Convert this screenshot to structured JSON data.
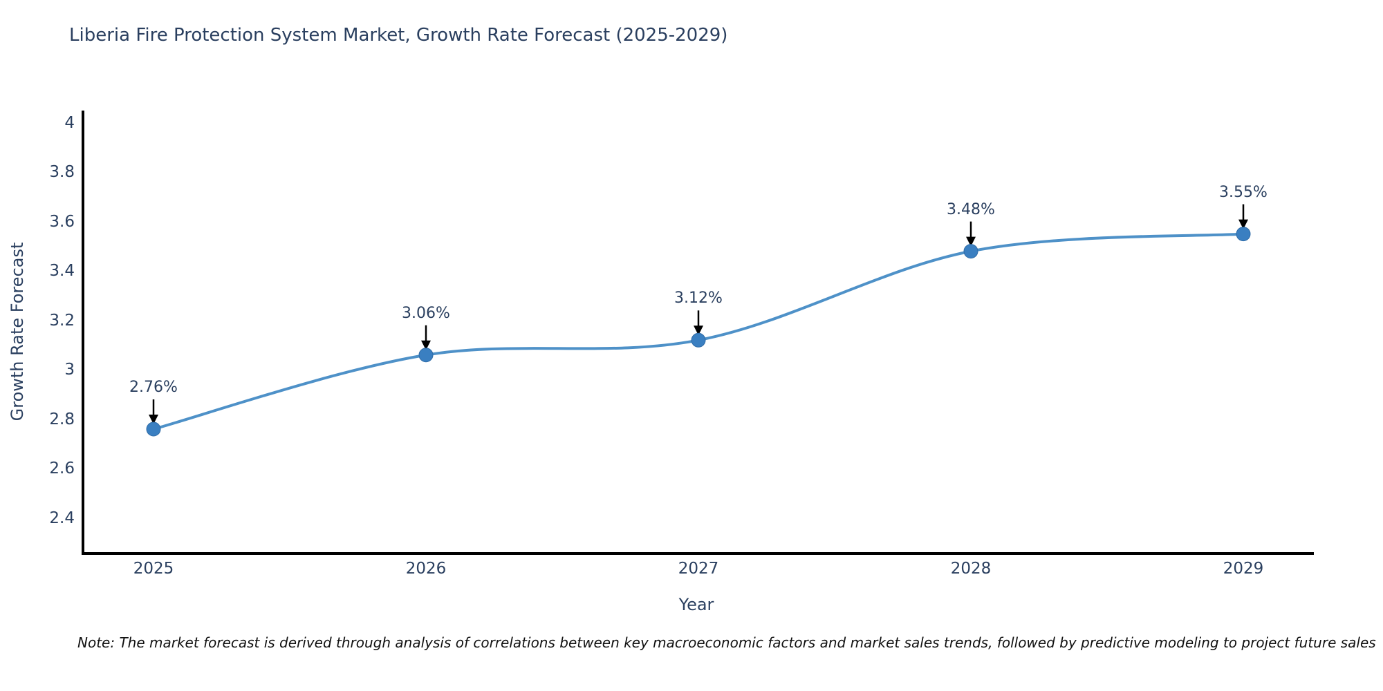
{
  "title": "Liberia Fire Protection System Market, Growth Rate Forecast (2025-2029)",
  "note": "Note: The market forecast is derived through analysis of correlations between key macroeconomic factors and market sales trends, followed by predictive modeling to project future sales",
  "chart_data": {
    "type": "line",
    "title": "Liberia Fire Protection System Market, Growth Rate Forecast (2025-2029)",
    "xlabel": "Year",
    "ylabel": "Growth Rate Forecast",
    "x": [
      "2025",
      "2026",
      "2027",
      "2028",
      "2029"
    ],
    "series": [
      {
        "name": "Growth Rate Forecast",
        "values": [
          2.76,
          3.06,
          3.12,
          3.48,
          3.55
        ]
      }
    ],
    "point_labels": [
      "2.76%",
      "3.06%",
      "3.12%",
      "3.48%",
      "3.55%"
    ],
    "ytick_labels": [
      "4",
      "3.8",
      "3.6",
      "3.4",
      "3.2",
      "3",
      "2.8",
      "2.6",
      "2.4"
    ],
    "yticks": [
      4,
      3.8,
      3.6,
      3.4,
      3.2,
      3,
      2.8,
      2.6,
      2.4
    ],
    "ylim": [
      2.2565,
      4.0495
    ],
    "grid": false,
    "line_shape": "spline",
    "colors": {
      "line": "#4e91c8",
      "marker": "#3a7fc1",
      "marker_edge": "#2f6ba6",
      "axis": "#000000",
      "text": "#2a3f5f",
      "arrow": "#000000"
    }
  }
}
